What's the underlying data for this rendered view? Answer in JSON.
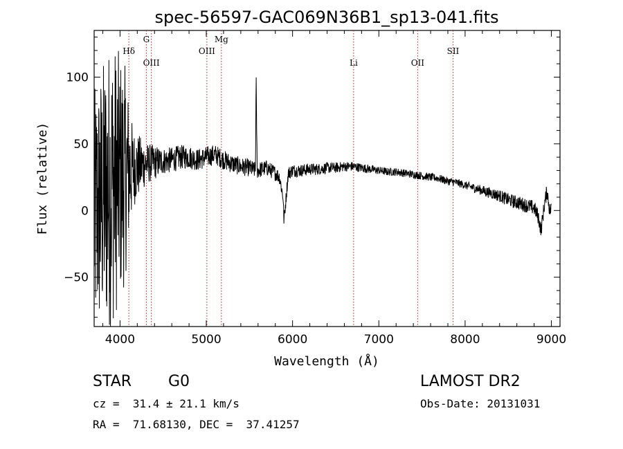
{
  "chart_data": {
    "type": "line",
    "title": "spec-56597-GAC069N36B1_sp13-041.fits",
    "xlabel": "Wavelength (Å)",
    "ylabel": "Flux (relative)",
    "xlim": [
      3700,
      9100
    ],
    "ylim": [
      -87,
      135
    ],
    "xticks": [
      4000,
      5000,
      6000,
      7000,
      8000,
      9000
    ],
    "yticks": [
      -50,
      0,
      50,
      100
    ],
    "xtick_labels": [
      "4000",
      "5000",
      "6000",
      "7000",
      "8000",
      "9000"
    ],
    "ytick_labels": [
      "−50",
      "0",
      "50",
      "100"
    ],
    "grid": false,
    "line_color": "#000000",
    "marker_color": "#b22222",
    "spectral_lines": [
      {
        "name": "Hδ",
        "x": 4102,
        "tier": 2
      },
      {
        "name": "G",
        "x": 4305,
        "tier": 1
      },
      {
        "name": "OIII",
        "x": 4363,
        "tier": 3
      },
      {
        "name": "OIII",
        "x": 5007,
        "tier": 2
      },
      {
        "name": "Mg",
        "x": 5175,
        "tier": 1
      },
      {
        "name": "Li",
        "x": 6708,
        "tier": 3
      },
      {
        "name": "OII",
        "x": 7450,
        "tier": 3
      },
      {
        "name": "SII",
        "x": 7860,
        "tier": 2
      }
    ],
    "series": [
      {
        "x": [
          3700,
          3800,
          3900,
          4000,
          4100,
          4200,
          4300,
          4400,
          4500,
          4600,
          4700,
          4800,
          4900,
          5000,
          5100,
          5200,
          5300,
          5400,
          5500,
          5570,
          5577,
          5590,
          5700,
          5800,
          5850,
          5890,
          5900,
          5950,
          6000,
          6100,
          6200,
          6300,
          6400,
          6500,
          6600,
          6700,
          6800,
          6900,
          7000,
          7100,
          7200,
          7300,
          7400,
          7500,
          7600,
          7700,
          7800,
          7900,
          8000,
          8100,
          8200,
          8300,
          8400,
          8500,
          8600,
          8700,
          8800,
          8850,
          8880,
          8920,
          8950,
          8980,
          9000
        ],
        "y": [
          -5,
          10,
          20,
          25,
          30,
          33,
          35,
          36,
          37,
          38,
          40,
          40,
          38,
          40,
          42,
          38,
          35,
          33,
          32,
          30,
          100,
          30,
          32,
          28,
          25,
          10,
          -8,
          28,
          30,
          30,
          31,
          31,
          32,
          32,
          33,
          33,
          32,
          31,
          30,
          29,
          29,
          28,
          27,
          26,
          25,
          24,
          22,
          21,
          19,
          17,
          15,
          13,
          11,
          8,
          6,
          4,
          2,
          -5,
          -15,
          5,
          15,
          0,
          1
        ]
      }
    ],
    "noise_amplitude": [
      {
        "x": 3700,
        "amp": 95
      },
      {
        "x": 3900,
        "amp": 110
      },
      {
        "x": 4050,
        "amp": 85
      },
      {
        "x": 4150,
        "amp": 30
      },
      {
        "x": 4300,
        "amp": 16
      },
      {
        "x": 4500,
        "amp": 10
      },
      {
        "x": 5000,
        "amp": 8
      },
      {
        "x": 6000,
        "amp": 5
      },
      {
        "x": 7000,
        "amp": 3
      },
      {
        "x": 8000,
        "amp": 3
      },
      {
        "x": 8500,
        "amp": 5
      },
      {
        "x": 9000,
        "amp": 6
      }
    ]
  },
  "info": {
    "object_class": "STAR",
    "subclass": "G0",
    "survey": "LAMOST DR2",
    "redshift": "cz =  31.4 ± 21.1 km/s",
    "obs_date": "Obs-Date: 20131031",
    "coords": "RA =  71.68130, DEC =  37.41257"
  }
}
